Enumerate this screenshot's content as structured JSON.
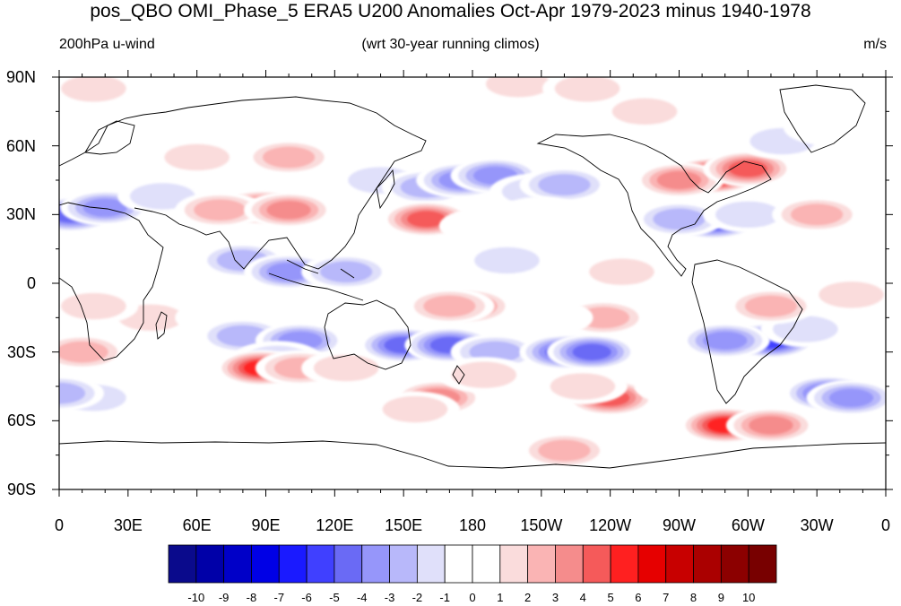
{
  "title": "pos_QBO OMI_Phase_5 ERA5 U200 Anomalies Oct-Apr 1979-2023 minus 1940-1978",
  "left_string": "200hPa u-wind",
  "center_string": "(wrt 30-year running climos)",
  "right_string": "m/s",
  "map": {
    "projection": "cylindrical equidistant",
    "center_lon": 180,
    "lat_labels": [
      "90N",
      "60N",
      "30N",
      "0",
      "30S",
      "60S",
      "90S"
    ],
    "lat_values": [
      90,
      60,
      30,
      0,
      -30,
      -60,
      -90
    ],
    "lon_labels": [
      "0",
      "30E",
      "60E",
      "90E",
      "120E",
      "150E",
      "180",
      "150W",
      "120W",
      "90W",
      "60W",
      "30W",
      "0"
    ],
    "lon_values": [
      0,
      30,
      60,
      90,
      120,
      150,
      180,
      210,
      240,
      270,
      300,
      330,
      360
    ]
  },
  "colorbar": {
    "labels": [
      "-10",
      "-9",
      "-8",
      "-7",
      "-6",
      "-5",
      "-4",
      "-3",
      "-2",
      "-1",
      "0",
      "1",
      "2",
      "3",
      "4",
      "5",
      "6",
      "7",
      "8",
      "9",
      "10"
    ],
    "colors": [
      "#0a0a8c",
      "#0000a8",
      "#0000c8",
      "#0000e6",
      "#1a1aff",
      "#4040ff",
      "#6a6af5",
      "#9696fa",
      "#b8b8fa",
      "#e0e0fa",
      "#ffffff",
      "#ffffff",
      "#fadcdc",
      "#fab4b4",
      "#f58c8c",
      "#f55a5a",
      "#ff2020",
      "#e60000",
      "#c80000",
      "#aa0000",
      "#8c0000",
      "#780000"
    ]
  },
  "anomalies": [
    {
      "lon": 5,
      "lat": 30,
      "v": -5
    },
    {
      "lon": 20,
      "lat": 33,
      "v": -4
    },
    {
      "lon": 45,
      "lat": 38,
      "v": -2
    },
    {
      "lon": 60,
      "lat": 55,
      "v": 2
    },
    {
      "lon": 20,
      "lat": 60,
      "v": 1
    },
    {
      "lon": 15,
      "lat": 85,
      "v": 2
    },
    {
      "lon": 40,
      "lat": -15,
      "v": 2
    },
    {
      "lon": 15,
      "lat": -10,
      "v": 2
    },
    {
      "lon": 10,
      "lat": -30,
      "v": 3
    },
    {
      "lon": 15,
      "lat": -50,
      "v": -2
    },
    {
      "lon": 0,
      "lat": -48,
      "v": -3
    },
    {
      "lon": 88,
      "lat": 33,
      "v": 5
    },
    {
      "lon": 70,
      "lat": 32,
      "v": 3
    },
    {
      "lon": 100,
      "lat": 32,
      "v": 4
    },
    {
      "lon": 100,
      "lat": 55,
      "v": 3
    },
    {
      "lon": 80,
      "lat": 10,
      "v": -3
    },
    {
      "lon": 100,
      "lat": 5,
      "v": -4
    },
    {
      "lon": 125,
      "lat": 5,
      "v": -3
    },
    {
      "lon": 70,
      "lat": -15,
      "v": -1
    },
    {
      "lon": 80,
      "lat": -23,
      "v": -3
    },
    {
      "lon": 105,
      "lat": -25,
      "v": -4
    },
    {
      "lon": 95,
      "lat": -33,
      "v": -2
    },
    {
      "lon": 88,
      "lat": -37,
      "v": 6
    },
    {
      "lon": 105,
      "lat": -37,
      "v": 3
    },
    {
      "lon": 125,
      "lat": -37,
      "v": 2
    },
    {
      "lon": 110,
      "lat": -60,
      "v": 1
    },
    {
      "lon": 70,
      "lat": -60,
      "v": 1
    },
    {
      "lon": 140,
      "lat": 82,
      "v": -1
    },
    {
      "lon": 140,
      "lat": 45,
      "v": -2
    },
    {
      "lon": 160,
      "lat": 42,
      "v": -3
    },
    {
      "lon": 175,
      "lat": 45,
      "v": -4
    },
    {
      "lon": 190,
      "lat": 47,
      "v": -4
    },
    {
      "lon": 207,
      "lat": 40,
      "v": -2
    },
    {
      "lon": 220,
      "lat": 43,
      "v": -3
    },
    {
      "lon": 160,
      "lat": 28,
      "v": 5
    },
    {
      "lon": 185,
      "lat": 25,
      "v": 1
    },
    {
      "lon": 195,
      "lat": 10,
      "v": -2
    },
    {
      "lon": 178,
      "lat": -10,
      "v": 4
    },
    {
      "lon": 170,
      "lat": -10,
      "v": 3
    },
    {
      "lon": 245,
      "lat": 5,
      "v": 2
    },
    {
      "lon": 210,
      "lat": 30,
      "v": 1
    },
    {
      "lon": 150,
      "lat": -27,
      "v": -5
    },
    {
      "lon": 170,
      "lat": -27,
      "v": -5
    },
    {
      "lon": 190,
      "lat": -30,
      "v": -3
    },
    {
      "lon": 165,
      "lat": -50,
      "v": 4
    },
    {
      "lon": 155,
      "lat": -55,
      "v": 2
    },
    {
      "lon": 190,
      "lat": -68,
      "v": 1
    },
    {
      "lon": 200,
      "lat": -45,
      "v": -1
    },
    {
      "lon": 185,
      "lat": -40,
      "v": 2
    },
    {
      "lon": 220,
      "lat": -30,
      "v": -5
    },
    {
      "lon": 232,
      "lat": -30,
      "v": -5
    },
    {
      "lon": 240,
      "lat": -50,
      "v": 5
    },
    {
      "lon": 228,
      "lat": -45,
      "v": 2
    },
    {
      "lon": 220,
      "lat": -73,
      "v": 3
    },
    {
      "lon": 200,
      "lat": 87,
      "v": 2
    },
    {
      "lon": 230,
      "lat": 85,
      "v": 2
    },
    {
      "lon": 255,
      "lat": 75,
      "v": 2
    },
    {
      "lon": 237,
      "lat": -15,
      "v": 3
    },
    {
      "lon": 213,
      "lat": -15,
      "v": 1
    },
    {
      "lon": 255,
      "lat": 40,
      "v": 1
    },
    {
      "lon": 245,
      "lat": 60,
      "v": 1
    },
    {
      "lon": 285,
      "lat": 47,
      "v": 8
    },
    {
      "lon": 270,
      "lat": 45,
      "v": 4
    },
    {
      "lon": 300,
      "lat": 50,
      "v": 5
    },
    {
      "lon": 285,
      "lat": 27,
      "v": -6
    },
    {
      "lon": 270,
      "lat": 28,
      "v": -3
    },
    {
      "lon": 300,
      "lat": 30,
      "v": -2
    },
    {
      "lon": 330,
      "lat": 30,
      "v": 3
    },
    {
      "lon": 315,
      "lat": 62,
      "v": -2
    },
    {
      "lon": 335,
      "lat": 68,
      "v": -1
    },
    {
      "lon": 320,
      "lat": 5,
      "v": -1
    },
    {
      "lon": 310,
      "lat": -25,
      "v": -6
    },
    {
      "lon": 290,
      "lat": -25,
      "v": -4
    },
    {
      "lon": 325,
      "lat": -20,
      "v": -2
    },
    {
      "lon": 290,
      "lat": -62,
      "v": 6
    },
    {
      "lon": 310,
      "lat": -62,
      "v": 4
    },
    {
      "lon": 335,
      "lat": -48,
      "v": -5
    },
    {
      "lon": 345,
      "lat": -50,
      "v": -4
    },
    {
      "lon": 310,
      "lat": -10,
      "v": 3
    },
    {
      "lon": 345,
      "lat": -5,
      "v": 2
    },
    {
      "lon": 345,
      "lat": 85,
      "v": 1
    },
    {
      "lon": 275,
      "lat": -5,
      "v": 1
    },
    {
      "lon": 270,
      "lat": -45,
      "v": 1
    }
  ]
}
